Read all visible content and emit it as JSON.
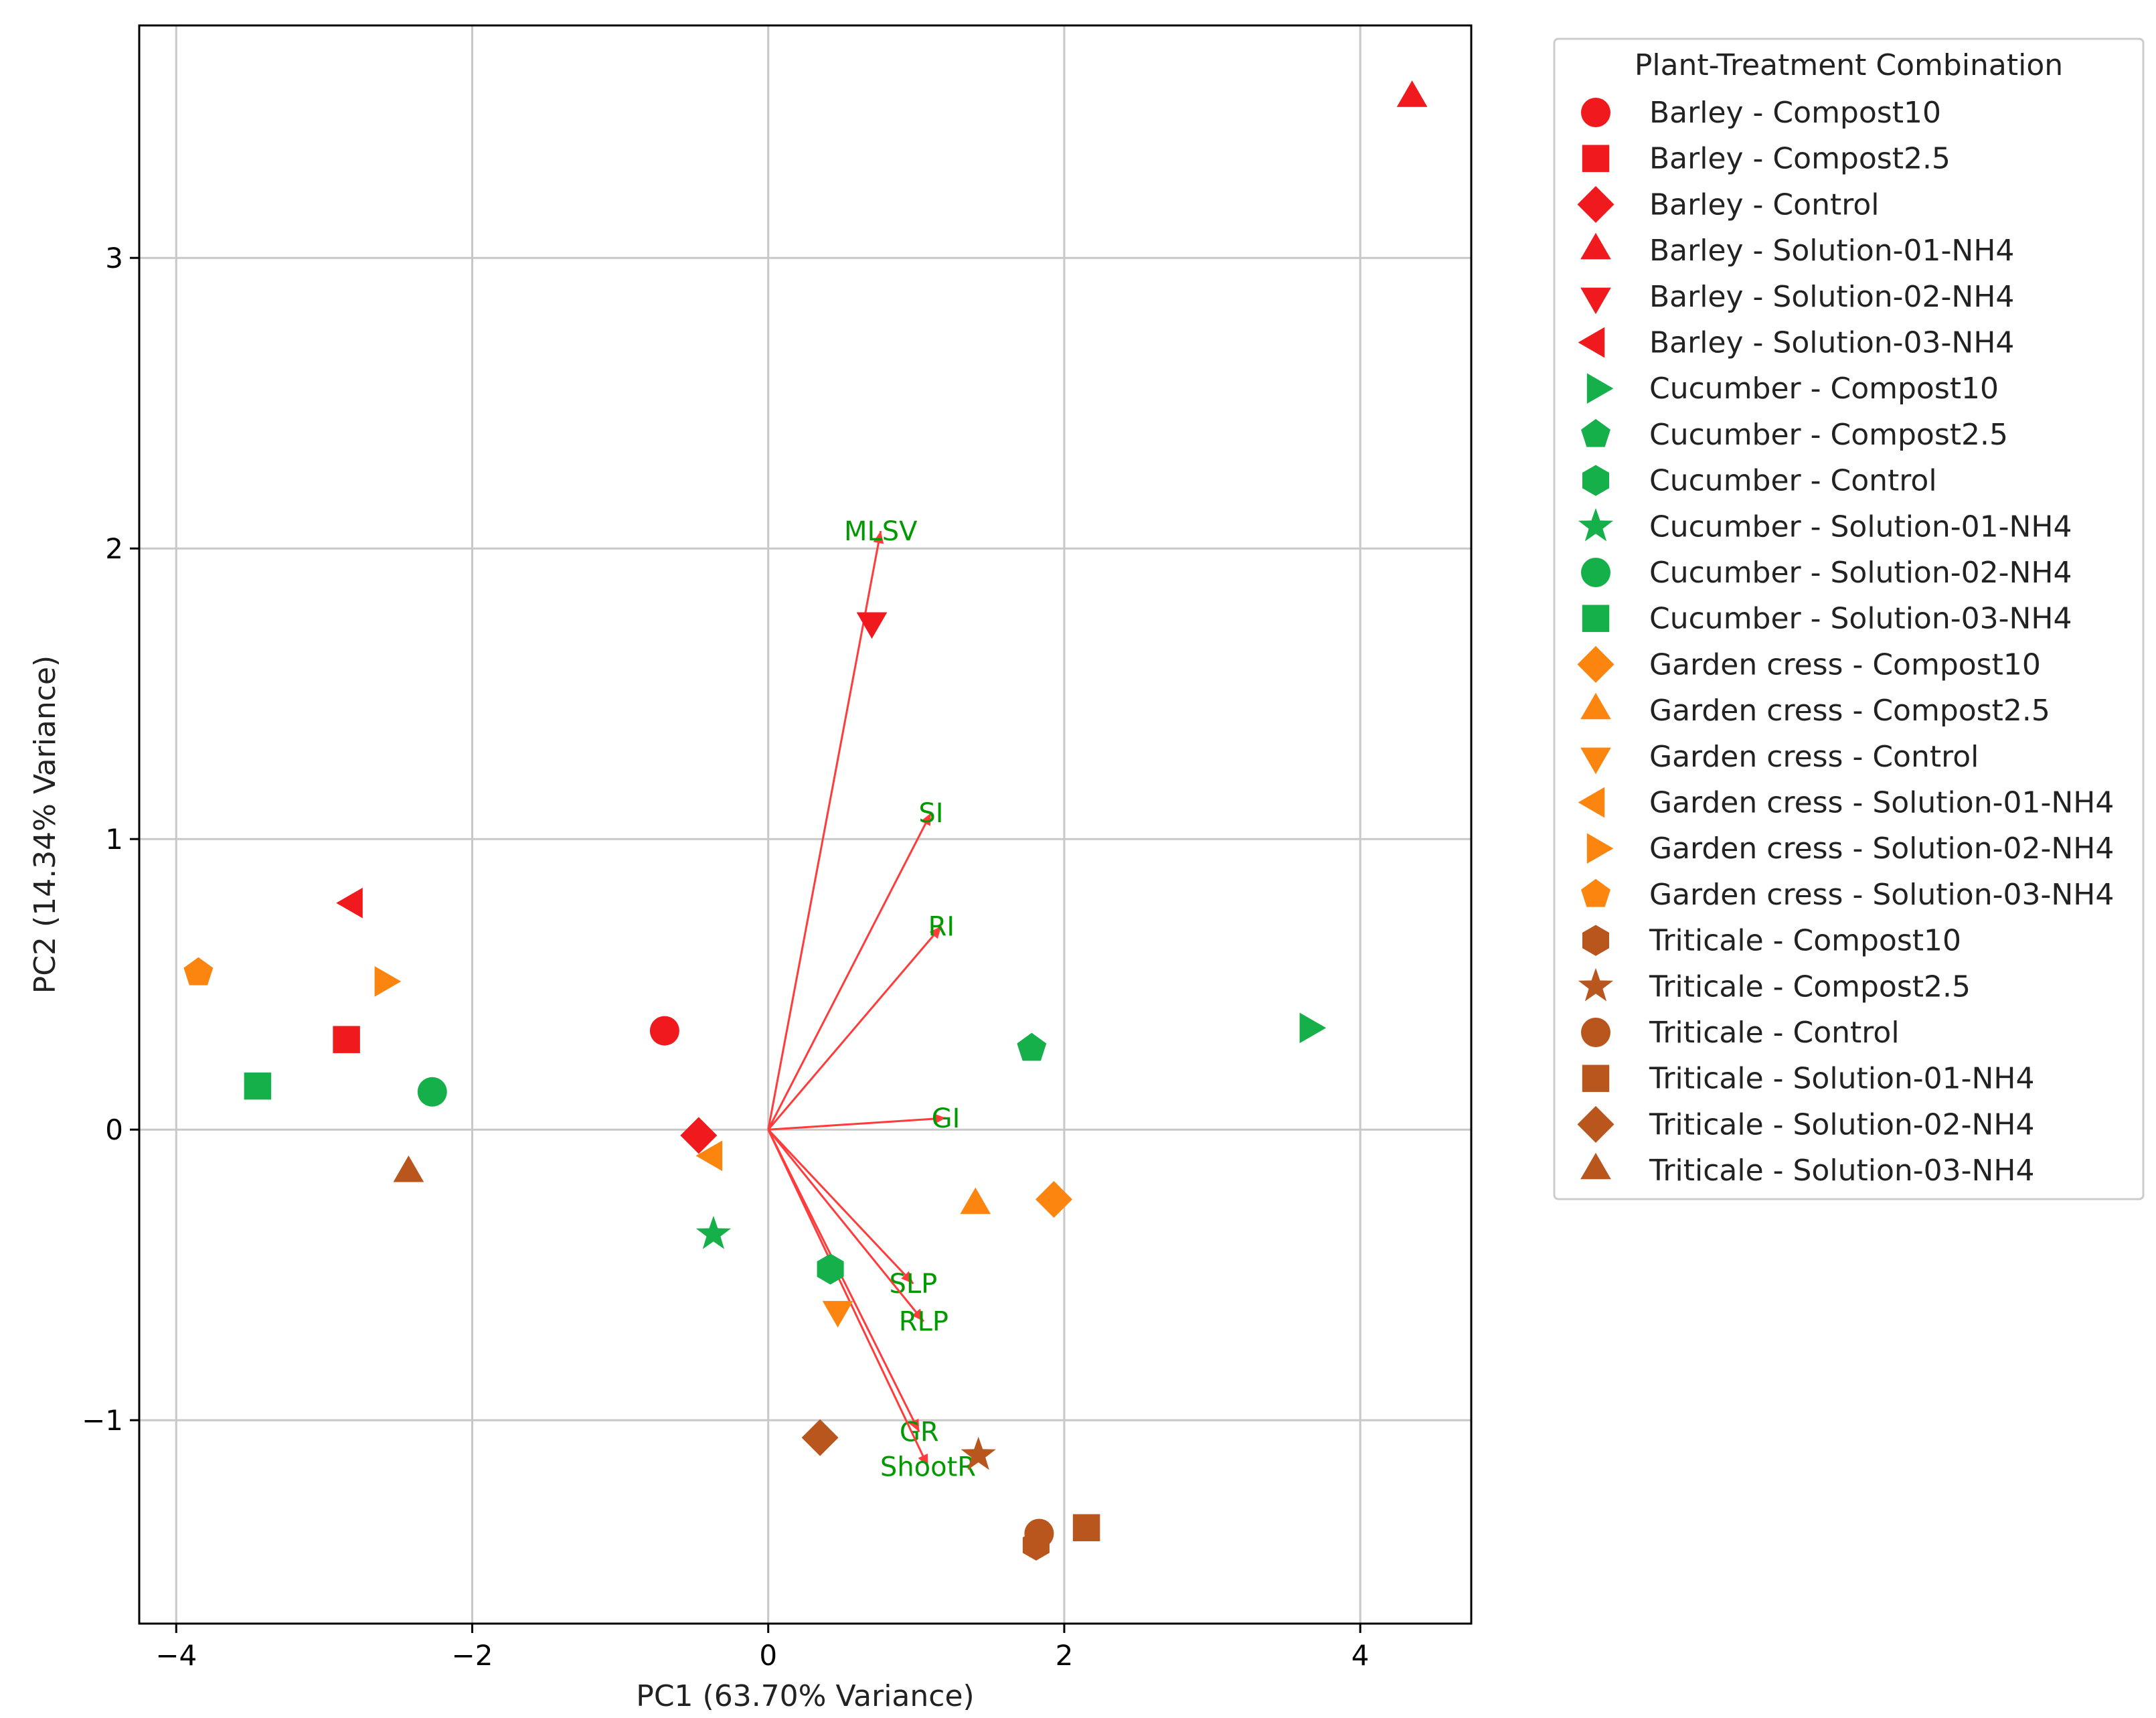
{
  "colors": {
    "Barley": "#f0191e",
    "Cucumber": "#16b04a",
    "Garden cress": "#fb850f",
    "Triticale": "#b8561e",
    "loading_line": "#ff3b3b",
    "loading_text": "#009a00",
    "grid": "#c8c8c8"
  },
  "chart_data": {
    "type": "scatter",
    "xlabel": "PC1 (63.70% Variance)",
    "ylabel": "PC2 (14.34% Variance)",
    "xlim": [
      -4.25,
      4.75
    ],
    "ylim": [
      -1.7,
      3.8
    ],
    "xticks": [
      -4,
      -2,
      0,
      2,
      4
    ],
    "xtick_labels": [
      "−4",
      "−2",
      "0",
      "2",
      "4"
    ],
    "yticks": [
      -1,
      0,
      1,
      2,
      3
    ],
    "ytick_labels": [
      "−1",
      "0",
      "1",
      "2",
      "3"
    ],
    "grid": true,
    "legend": {
      "title": "Plant-Treatment Combination",
      "placement": "outside-right"
    },
    "points": [
      {
        "label": "Barley - Compost10",
        "plant": "Barley",
        "marker": "circle",
        "x": -0.7,
        "y": 0.34
      },
      {
        "label": "Barley - Compost2.5",
        "plant": "Barley",
        "marker": "square",
        "x": -2.85,
        "y": 0.31
      },
      {
        "label": "Barley - Control",
        "plant": "Barley",
        "marker": "diamond",
        "x": -0.47,
        "y": -0.02
      },
      {
        "label": "Barley - Solution-01-NH4",
        "plant": "Barley",
        "marker": "triangle-up",
        "x": 4.35,
        "y": 3.55
      },
      {
        "label": "Barley - Solution-02-NH4",
        "plant": "Barley",
        "marker": "triangle-down",
        "x": 0.7,
        "y": 1.75
      },
      {
        "label": "Barley - Solution-03-NH4",
        "plant": "Barley",
        "marker": "triangle-left",
        "x": -2.8,
        "y": 0.78
      },
      {
        "label": "Cucumber - Compost10",
        "plant": "Cucumber",
        "marker": "triangle-right",
        "x": 3.65,
        "y": 0.35
      },
      {
        "label": "Cucumber - Compost2.5",
        "plant": "Cucumber",
        "marker": "pentagon",
        "x": 1.78,
        "y": 0.28
      },
      {
        "label": "Cucumber - Control",
        "plant": "Cucumber",
        "marker": "hexagon",
        "x": 0.42,
        "y": -0.48
      },
      {
        "label": "Cucumber - Solution-01-NH4",
        "plant": "Cucumber",
        "marker": "star",
        "x": -0.37,
        "y": -0.36
      },
      {
        "label": "Cucumber - Solution-02-NH4",
        "plant": "Cucumber",
        "marker": "circle",
        "x": -2.27,
        "y": 0.13
      },
      {
        "label": "Cucumber - Solution-03-NH4",
        "plant": "Cucumber",
        "marker": "square",
        "x": -3.45,
        "y": 0.15
      },
      {
        "label": "Garden cress - Compost10",
        "plant": "Garden cress",
        "marker": "diamond",
        "x": 1.93,
        "y": -0.24
      },
      {
        "label": "Garden cress - Compost2.5",
        "plant": "Garden cress",
        "marker": "triangle-up",
        "x": 1.4,
        "y": -0.26
      },
      {
        "label": "Garden cress - Control",
        "plant": "Garden cress",
        "marker": "triangle-down",
        "x": 0.47,
        "y": -0.62
      },
      {
        "label": "Garden cress - Solution-01-NH4",
        "plant": "Garden cress",
        "marker": "triangle-left",
        "x": -0.37,
        "y": -0.09
      },
      {
        "label": "Garden cress - Solution-02-NH4",
        "plant": "Garden cress",
        "marker": "triangle-right",
        "x": -2.6,
        "y": 0.51
      },
      {
        "label": "Garden cress - Solution-03-NH4",
        "plant": "Garden cress",
        "marker": "pentagon",
        "x": -3.85,
        "y": 0.54
      },
      {
        "label": "Triticale - Compost10",
        "plant": "Triticale",
        "marker": "hexagon",
        "x": 1.81,
        "y": -1.43
      },
      {
        "label": "Triticale - Compost2.5",
        "plant": "Triticale",
        "marker": "star",
        "x": 1.42,
        "y": -1.12
      },
      {
        "label": "Triticale - Control",
        "plant": "Triticale",
        "marker": "circle",
        "x": 1.83,
        "y": -1.39
      },
      {
        "label": "Triticale - Solution-01-NH4",
        "plant": "Triticale",
        "marker": "square",
        "x": 2.15,
        "y": -1.37
      },
      {
        "label": "Triticale - Solution-02-NH4",
        "plant": "Triticale",
        "marker": "diamond",
        "x": 0.35,
        "y": -1.06
      },
      {
        "label": "Triticale - Solution-03-NH4",
        "plant": "Triticale",
        "marker": "triangle-up",
        "x": -2.43,
        "y": -0.15
      }
    ],
    "loadings": [
      {
        "name": "MLSV",
        "x": 0.76,
        "y": 2.06
      },
      {
        "name": "SI",
        "x": 1.1,
        "y": 1.09
      },
      {
        "name": "RI",
        "x": 1.17,
        "y": 0.7
      },
      {
        "name": "GI",
        "x": 1.2,
        "y": 0.04
      },
      {
        "name": "SLP",
        "x": 0.98,
        "y": -0.53
      },
      {
        "name": "RLP",
        "x": 1.05,
        "y": -0.66
      },
      {
        "name": "GR",
        "x": 1.02,
        "y": -1.04
      },
      {
        "name": "ShootR",
        "x": 1.08,
        "y": -1.16
      }
    ]
  }
}
